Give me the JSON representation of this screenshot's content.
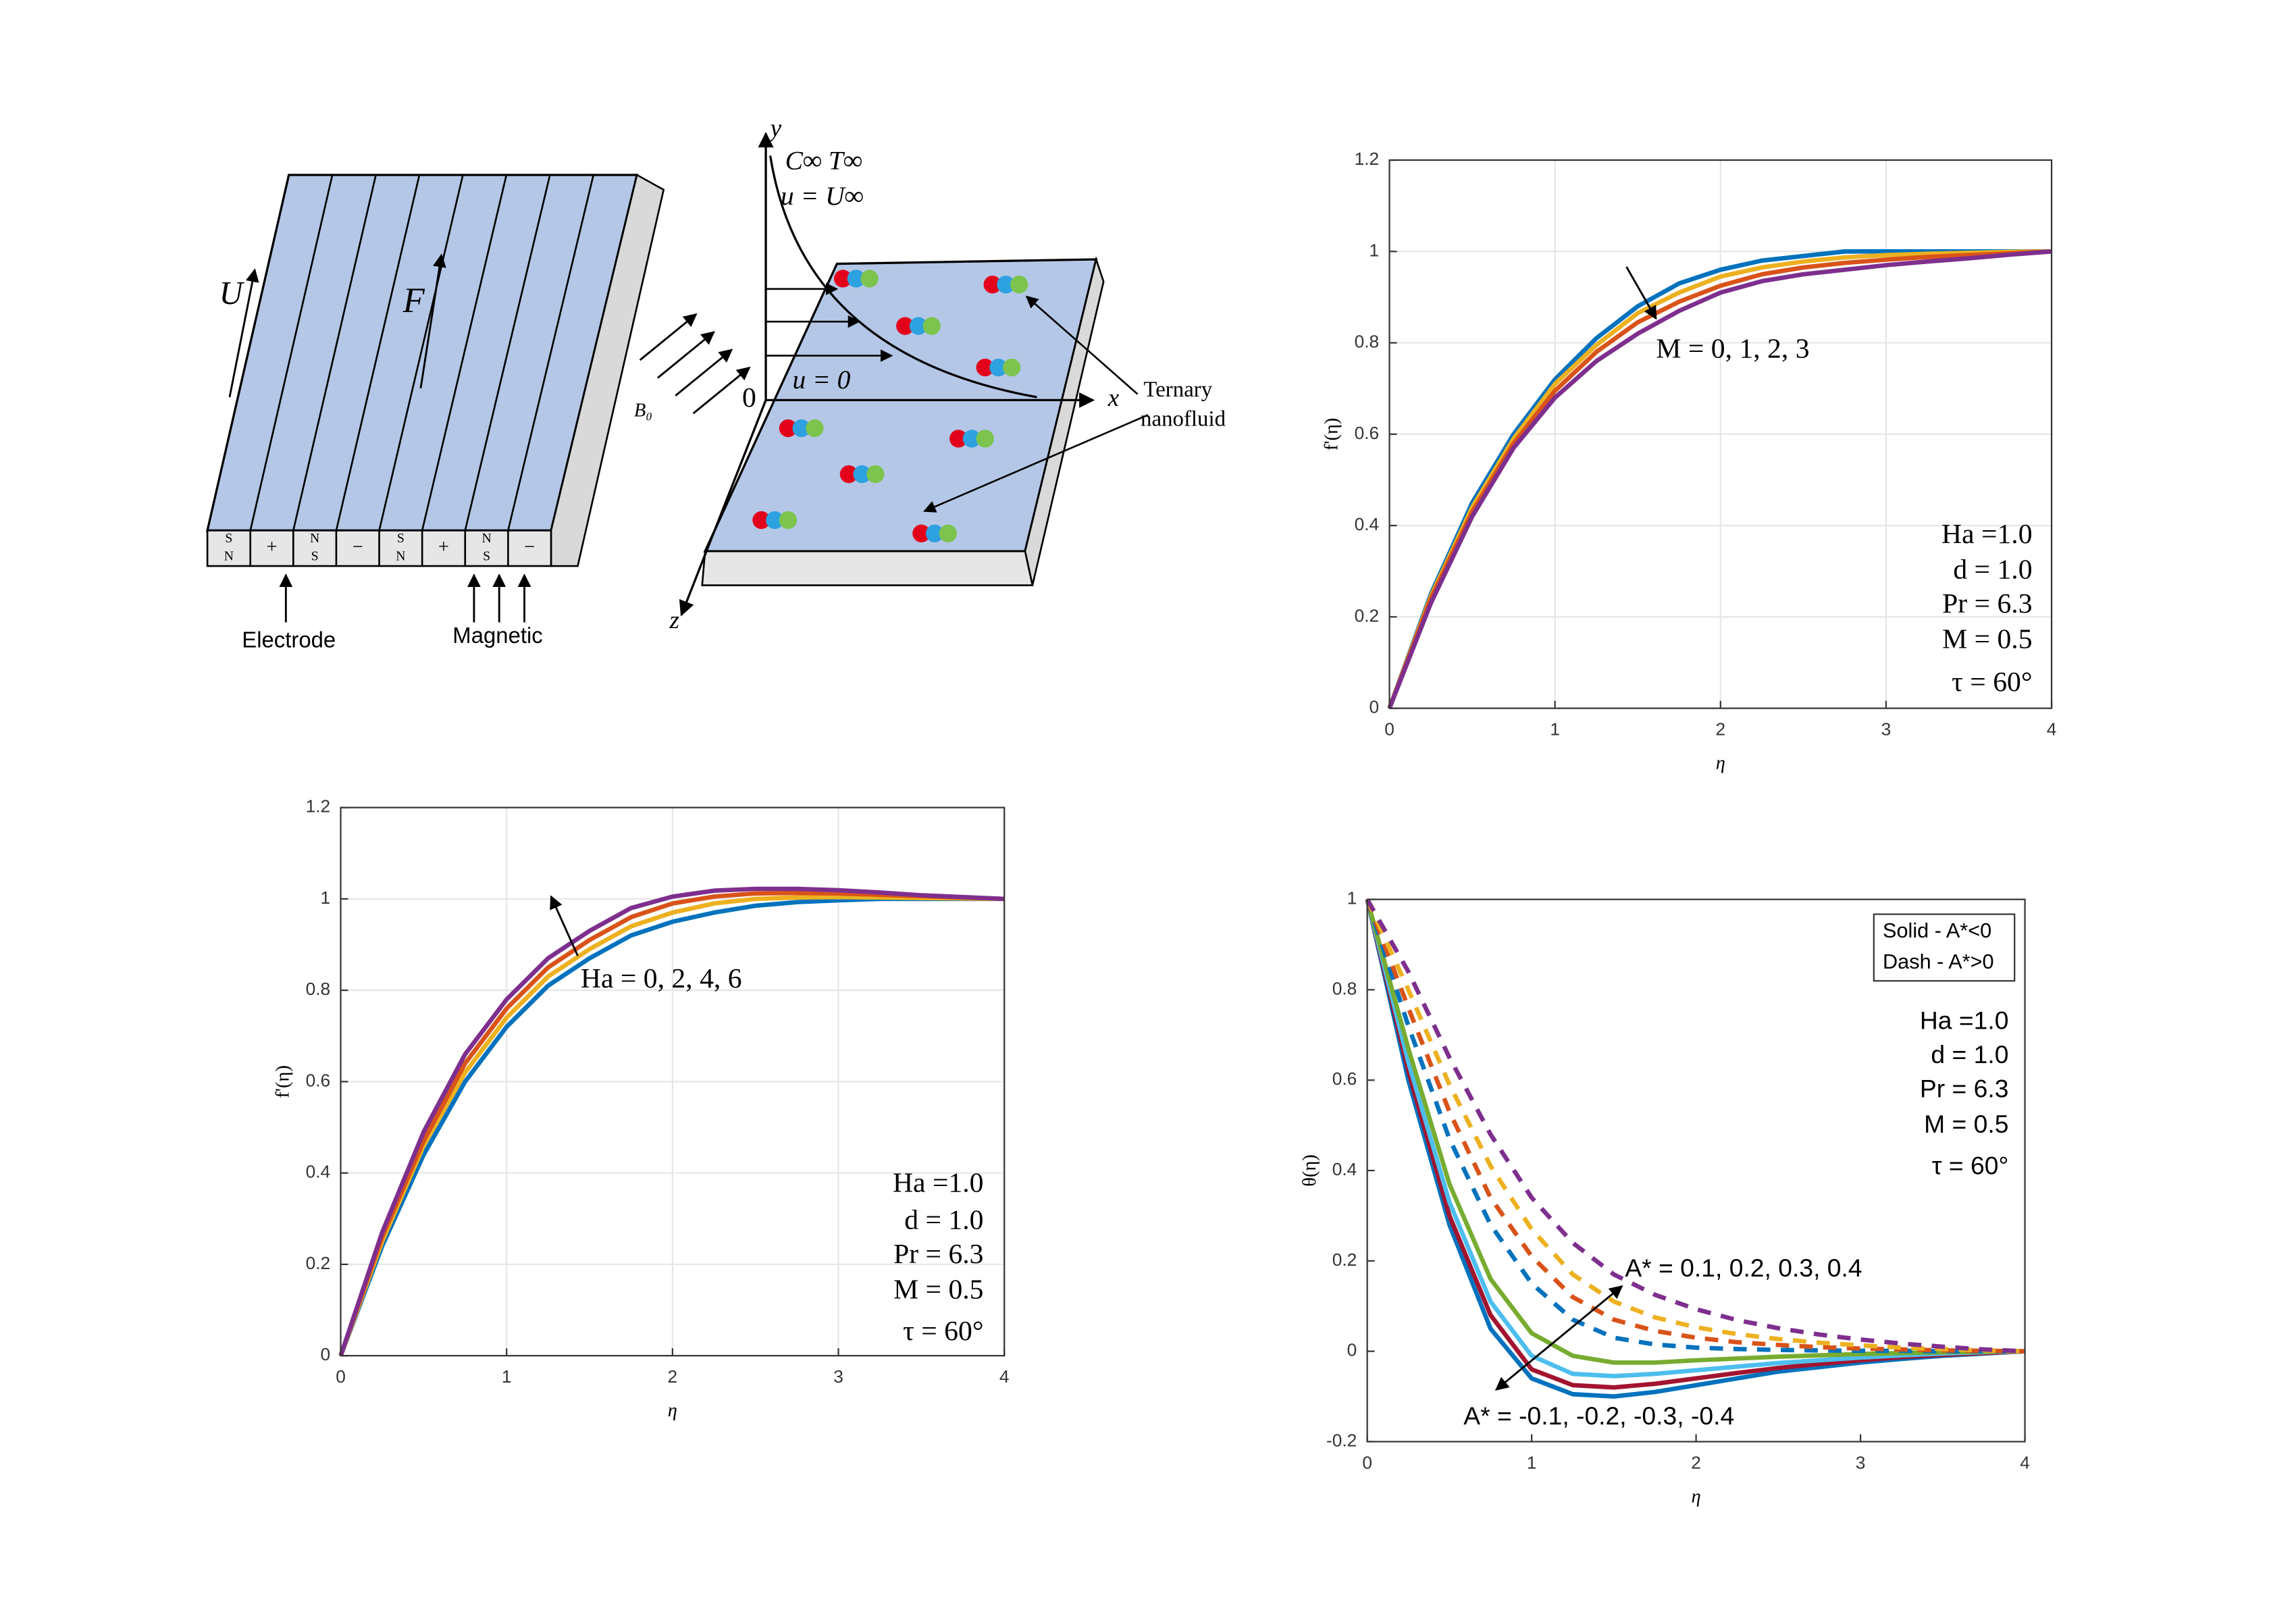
{
  "diagram": {
    "y_axis": "y",
    "x_axis": "x",
    "z_axis": "z",
    "origin": "0",
    "free_stream": "C∞ T∞",
    "free_velocity": "u = U∞",
    "wall_velocity": "u = 0",
    "ternary": [
      "Ternary",
      "nanofluid"
    ],
    "field": "B₀",
    "velocity": "U",
    "force": "F",
    "electrode": "Electrode",
    "magnetic": "Magnetic",
    "plate_labels": [
      [
        "S",
        "N"
      ],
      [
        "+"
      ],
      [
        "N",
        "S"
      ],
      [
        "−"
      ],
      [
        "S",
        "N"
      ],
      [
        "+"
      ],
      [
        "N",
        "S"
      ],
      [
        "−"
      ]
    ]
  },
  "chart_data": [
    {
      "type": "line",
      "xlabel": "η",
      "ylabel": "f'(η)",
      "xlim": [
        0,
        4
      ],
      "ylim": [
        0,
        1.2
      ],
      "xticks": [
        0,
        1,
        2,
        3,
        4
      ],
      "yticks": [
        0,
        0.2,
        0.4,
        0.6,
        0.8,
        1,
        1.2
      ],
      "grid": true,
      "x": [
        0,
        0.25,
        0.5,
        0.75,
        1,
        1.25,
        1.5,
        1.75,
        2,
        2.25,
        2.5,
        2.75,
        3,
        3.25,
        3.5,
        3.75,
        4
      ],
      "series": [
        {
          "color": "#0072bd",
          "values": [
            0,
            0.25,
            0.45,
            0.6,
            0.72,
            0.81,
            0.88,
            0.93,
            0.96,
            0.98,
            0.99,
            1,
            1,
            1,
            1,
            1,
            1
          ]
        },
        {
          "color": "#edb120",
          "values": [
            0,
            0.245,
            0.44,
            0.59,
            0.71,
            0.795,
            0.865,
            0.91,
            0.945,
            0.965,
            0.978,
            0.987,
            0.992,
            0.995,
            0.997,
            0.999,
            1
          ]
        },
        {
          "color": "#d95319",
          "values": [
            0,
            0.24,
            0.43,
            0.58,
            0.695,
            0.78,
            0.845,
            0.89,
            0.925,
            0.95,
            0.965,
            0.975,
            0.982,
            0.988,
            0.992,
            0.996,
            1
          ]
        },
        {
          "color": "#7e2f8e",
          "values": [
            0,
            0.23,
            0.42,
            0.57,
            0.68,
            0.76,
            0.82,
            0.87,
            0.91,
            0.935,
            0.95,
            0.96,
            0.97,
            0.978,
            0.985,
            0.993,
            1
          ]
        }
      ],
      "annotations": [
        "M = 0, 1, 2, 3"
      ],
      "params": [
        "Ha =1.0",
        "d = 1.0",
        "Pr = 6.3",
        "M = 0.5",
        "τ = 60°"
      ]
    },
    {
      "type": "line",
      "xlabel": "η",
      "ylabel": "f'(η)",
      "xlim": [
        0,
        4
      ],
      "ylim": [
        0,
        1.2
      ],
      "xticks": [
        0,
        1,
        2,
        3,
        4
      ],
      "yticks": [
        0,
        0.2,
        0.4,
        0.6,
        0.8,
        1,
        1.2
      ],
      "grid": true,
      "x": [
        0,
        0.25,
        0.5,
        0.75,
        1,
        1.25,
        1.5,
        1.75,
        2,
        2.25,
        2.5,
        2.75,
        3,
        3.25,
        3.5,
        3.75,
        4
      ],
      "series": [
        {
          "color": "#0072bd",
          "values": [
            0,
            0.24,
            0.44,
            0.6,
            0.72,
            0.81,
            0.87,
            0.92,
            0.95,
            0.97,
            0.985,
            0.993,
            0.997,
            1,
            1,
            1,
            1
          ]
        },
        {
          "color": "#edb120",
          "values": [
            0,
            0.25,
            0.46,
            0.62,
            0.74,
            0.83,
            0.89,
            0.94,
            0.97,
            0.99,
            1,
            1.003,
            1.004,
            1.003,
            1.002,
            1.001,
            1
          ]
        },
        {
          "color": "#d95319",
          "values": [
            0,
            0.26,
            0.47,
            0.64,
            0.76,
            0.85,
            0.91,
            0.96,
            0.99,
            1.005,
            1.012,
            1.013,
            1.012,
            1.009,
            1.006,
            1.003,
            1
          ]
        },
        {
          "color": "#7e2f8e",
          "values": [
            0,
            0.27,
            0.49,
            0.66,
            0.78,
            0.87,
            0.93,
            0.98,
            1.005,
            1.018,
            1.022,
            1.022,
            1.019,
            1.014,
            1.008,
            1.004,
            1
          ]
        }
      ],
      "annotations": [
        "Ha = 0, 2, 4, 6"
      ],
      "params": [
        "Ha =1.0",
        "d = 1.0",
        "Pr = 6.3",
        "M = 0.5",
        "τ = 60°"
      ]
    },
    {
      "type": "line",
      "xlabel": "η",
      "ylabel": "θ(η)",
      "xlim": [
        0,
        4
      ],
      "ylim": [
        -0.2,
        1
      ],
      "xticks": [
        0,
        1,
        2,
        3,
        4
      ],
      "yticks": [
        -0.2,
        0,
        0.2,
        0.4,
        0.6,
        0.8,
        1
      ],
      "grid": false,
      "x": [
        0,
        0.25,
        0.5,
        0.75,
        1,
        1.25,
        1.5,
        1.75,
        2,
        2.25,
        2.5,
        2.75,
        3,
        3.25,
        3.5,
        3.75,
        4
      ],
      "series": [
        {
          "color": "#0072bd",
          "dash": false,
          "values": [
            1,
            0.6,
            0.28,
            0.05,
            -0.06,
            -0.095,
            -0.1,
            -0.09,
            -0.075,
            -0.06,
            -0.045,
            -0.035,
            -0.025,
            -0.017,
            -0.01,
            -0.005,
            0
          ]
        },
        {
          "color": "#a2142f",
          "dash": false,
          "values": [
            1,
            0.62,
            0.3,
            0.08,
            -0.04,
            -0.075,
            -0.08,
            -0.072,
            -0.06,
            -0.048,
            -0.037,
            -0.028,
            -0.02,
            -0.013,
            -0.008,
            -0.004,
            0
          ]
        },
        {
          "color": "#4dbeee",
          "dash": false,
          "values": [
            1,
            0.64,
            0.33,
            0.11,
            -0.01,
            -0.05,
            -0.055,
            -0.05,
            -0.042,
            -0.034,
            -0.026,
            -0.02,
            -0.014,
            -0.009,
            -0.005,
            -0.002,
            0
          ]
        },
        {
          "color": "#77ac30",
          "dash": false,
          "values": [
            1,
            0.67,
            0.37,
            0.16,
            0.04,
            -0.01,
            -0.025,
            -0.025,
            -0.02,
            -0.016,
            -0.012,
            -0.009,
            -0.006,
            -0.004,
            -0.002,
            -0.001,
            0
          ]
        },
        {
          "color": "#0072bd",
          "dash": true,
          "values": [
            1,
            0.72,
            0.47,
            0.28,
            0.15,
            0.07,
            0.03,
            0.015,
            0.008,
            0.005,
            0.003,
            0.002,
            0.001,
            0.001,
            0,
            0,
            0
          ]
        },
        {
          "color": "#d95319",
          "dash": true,
          "values": [
            1,
            0.76,
            0.53,
            0.34,
            0.21,
            0.12,
            0.07,
            0.045,
            0.03,
            0.02,
            0.014,
            0.009,
            0.006,
            0.004,
            0.002,
            0.001,
            0
          ]
        },
        {
          "color": "#edb120",
          "dash": true,
          "values": [
            1,
            0.8,
            0.59,
            0.41,
            0.27,
            0.17,
            0.11,
            0.075,
            0.053,
            0.038,
            0.027,
            0.019,
            0.013,
            0.008,
            0.005,
            0.002,
            0
          ]
        },
        {
          "color": "#7e2f8e",
          "dash": true,
          "values": [
            1,
            0.84,
            0.65,
            0.48,
            0.34,
            0.24,
            0.17,
            0.125,
            0.093,
            0.069,
            0.051,
            0.037,
            0.026,
            0.017,
            0.01,
            0.004,
            0
          ]
        }
      ],
      "annotations": [
        "A* = 0.1, 0.2, 0.3, 0.4",
        "A* = -0.1, -0.2, -0.3, -0.4"
      ],
      "legend_box": [
        "Solid - A*<0",
        "Dash - A*>0"
      ],
      "params": [
        "Ha =1.0",
        "d = 1.0",
        "Pr = 6.3",
        "M = 0.5",
        "τ = 60°"
      ]
    }
  ]
}
